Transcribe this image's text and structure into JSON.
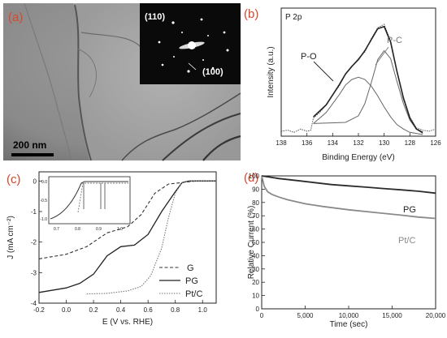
{
  "panels": {
    "a": {
      "label": "(a)",
      "scale_bar": "200 nm",
      "inset_labels": [
        "(110)",
        "(100)"
      ]
    },
    "b": {
      "label": "(b)",
      "title": "P 2p",
      "peak_labels": [
        "P-O",
        "P-C"
      ],
      "colors": {
        "envelope": "#222222",
        "fit": "#666666",
        "data": "#555555"
      }
    },
    "c": {
      "label": "(c)",
      "legend": [
        "G",
        "PG",
        "Pt/C"
      ],
      "inset_xticks": [
        "0.7",
        "0.8",
        "0.9",
        "1.0"
      ],
      "inset_yticks": [
        "0.0",
        "-0.5",
        "-1.0"
      ]
    },
    "d": {
      "label": "(d)",
      "series_labels": [
        "PG",
        "Pt/C"
      ],
      "colors": {
        "PG": "#2b2b2b",
        "PtC": "#8a8a8a"
      }
    }
  },
  "chart_data": [
    {
      "type": "line",
      "panel": "b",
      "title": "P 2p",
      "xlabel": "Binding Energy (eV)",
      "ylabel": "Intensity (a.u.)",
      "xlim": [
        138,
        126
      ],
      "xticks": [
        138,
        136,
        134,
        132,
        130,
        128,
        126
      ],
      "ylim": [
        0,
        1
      ],
      "series": [
        {
          "name": "P-O",
          "x": [
            135.5,
            134.5,
            133.5,
            133,
            132.5,
            132,
            131.5,
            131,
            130.5,
            130,
            129.5,
            129,
            128.5,
            128,
            127.5,
            127
          ],
          "values": [
            0.1,
            0.2,
            0.36,
            0.45,
            0.5,
            0.52,
            0.5,
            0.44,
            0.35,
            0.25,
            0.16,
            0.09,
            0.05,
            0.02,
            0.01,
            0
          ]
        },
        {
          "name": "P-C",
          "x": [
            135.5,
            133,
            132,
            131.5,
            131,
            130.5,
            130,
            129.5,
            129,
            128.5,
            128,
            127.5,
            127
          ],
          "values": [
            0.1,
            0.11,
            0.17,
            0.28,
            0.47,
            0.68,
            0.76,
            0.69,
            0.48,
            0.28,
            0.13,
            0.05,
            0.01
          ]
        },
        {
          "name": "Envelope",
          "x": [
            135.5,
            134.5,
            133.5,
            133,
            132.5,
            132,
            131.5,
            131,
            130.5,
            130,
            129.5,
            129,
            128.5,
            128,
            127.5,
            127
          ],
          "values": [
            0.16,
            0.27,
            0.45,
            0.55,
            0.62,
            0.68,
            0.76,
            0.86,
            0.96,
            0.98,
            0.84,
            0.57,
            0.33,
            0.15,
            0.05,
            0.02
          ]
        },
        {
          "name": "Data",
          "x": [
            138,
            137.5,
            137,
            136.5,
            136,
            135.7,
            135.5,
            135,
            134.5,
            134,
            133.5,
            133,
            132.5,
            132,
            131.5,
            131,
            130.5,
            130,
            129.5,
            129,
            128.5,
            128,
            127.5,
            127,
            126.5,
            126
          ],
          "values": [
            0.03,
            0.04,
            0.02,
            0.05,
            0.03,
            0.04,
            0.15,
            0.2,
            0.27,
            0.36,
            0.44,
            0.55,
            0.62,
            0.69,
            0.75,
            0.87,
            0.97,
            1.0,
            0.85,
            0.57,
            0.34,
            0.16,
            0.06,
            0.04,
            0.03,
            0.05
          ]
        }
      ]
    },
    {
      "type": "line",
      "panel": "c",
      "xlabel": "E (V vs. RHE)",
      "ylabel": "J (mA cm⁻²)",
      "xlim": [
        -0.2,
        1.1
      ],
      "ylim": [
        -4,
        0.3
      ],
      "xticks": [
        -0.2,
        0.0,
        0.2,
        0.4,
        0.6,
        0.8,
        1.0
      ],
      "yticks": [
        0,
        -1,
        -2,
        -3,
        -4
      ],
      "series": [
        {
          "name": "G",
          "x": [
            -0.2,
            0.0,
            0.15,
            0.3,
            0.45,
            0.55,
            0.65,
            0.75,
            0.85,
            0.95,
            1.1
          ],
          "values": [
            -2.55,
            -2.4,
            -2.15,
            -1.7,
            -1.5,
            -1.1,
            -0.4,
            -0.1,
            -0.05,
            0,
            0
          ]
        },
        {
          "name": "PG",
          "x": [
            -0.2,
            0.0,
            0.1,
            0.2,
            0.3,
            0.4,
            0.5,
            0.6,
            0.7,
            0.8,
            0.85,
            0.9,
            1.0,
            1.1
          ],
          "values": [
            -3.65,
            -3.5,
            -3.35,
            -3.05,
            -2.45,
            -2.15,
            -2.1,
            -1.75,
            -1.0,
            -0.35,
            -0.05,
            0,
            0,
            0
          ]
        },
        {
          "name": "Pt/C",
          "x": [
            0.15,
            0.3,
            0.45,
            0.55,
            0.62,
            0.7,
            0.75,
            0.8,
            0.85,
            0.9,
            1.0,
            1.1
          ],
          "values": [
            -3.7,
            -3.68,
            -3.6,
            -3.45,
            -3.1,
            -2.2,
            -1.2,
            -0.4,
            -0.05,
            0,
            0,
            0
          ]
        }
      ]
    },
    {
      "type": "line",
      "panel": "d",
      "xlabel": "Time (sec)",
      "ylabel": "Relative Current (%)",
      "xlim": [
        0,
        20000
      ],
      "ylim": [
        0,
        100
      ],
      "xticks": [
        0,
        5000,
        10000,
        15000,
        20000
      ],
      "xtick_labels": [
        "0",
        "5,000",
        "10,000",
        "15,000",
        "20,000"
      ],
      "yticks": [
        0,
        10,
        20,
        30,
        40,
        50,
        60,
        70,
        80,
        90,
        100
      ],
      "series": [
        {
          "name": "PG",
          "x": [
            0,
            1000,
            2000,
            4000,
            6000,
            8000,
            10000,
            12000,
            14000,
            16000,
            18000,
            20000
          ],
          "values": [
            100,
            99,
            98,
            96.5,
            95,
            93.5,
            92.5,
            91.5,
            90.5,
            89.5,
            88.5,
            87
          ]
        },
        {
          "name": "Pt/C",
          "x": [
            0,
            300,
            700,
            1200,
            2000,
            3000,
            5000,
            7000,
            10000,
            13000,
            16000,
            18000,
            20000
          ],
          "values": [
            100,
            92,
            88,
            86,
            84,
            82,
            79,
            77,
            74.5,
            72.5,
            70.5,
            69,
            68
          ]
        }
      ]
    }
  ]
}
